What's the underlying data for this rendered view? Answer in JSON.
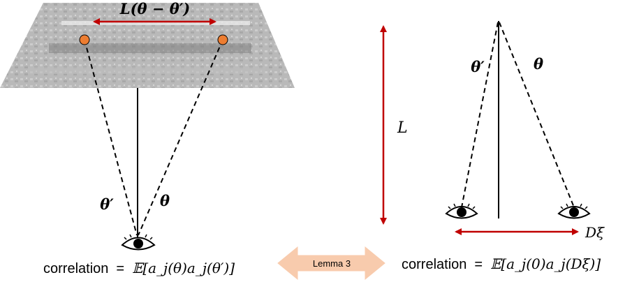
{
  "left_panel": {
    "top_label": "L(θ − θ′)",
    "theta_prime_label": "θ′",
    "theta_label": "θ",
    "correlation_text": "correlation",
    "equals": "=",
    "correlation_expr": "𝔼[a_j(θ)a_j(θ′)]"
  },
  "middle": {
    "lemma_label": "Lemma 3",
    "L_label": "L"
  },
  "right_panel": {
    "theta_prime_label": "θ′",
    "theta_label": "θ",
    "bottom_label": "Dξ",
    "correlation_text": "correlation",
    "equals": "=",
    "correlation_expr": "𝔼[a_j(0)a_j(Dξ)]"
  },
  "colors": {
    "arrow_red": "#c00000",
    "dot_orange": "#ed7d31",
    "lemma_fill": "#f8cbad",
    "line": "#000000"
  }
}
